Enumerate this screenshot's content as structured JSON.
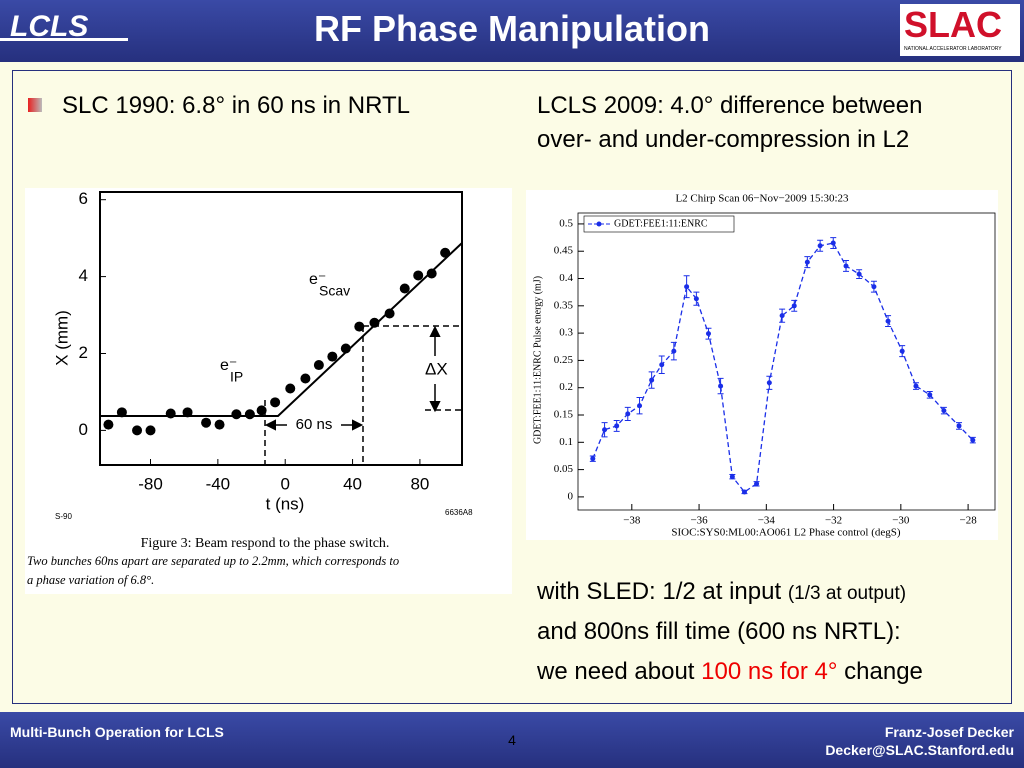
{
  "header": {
    "title": "RF Phase Manipulation",
    "logo_left": "LCLS",
    "logo_right": "SLAC",
    "logo_right_sub": "NATIONAL ACCELERATOR LABORATORY"
  },
  "bullets": {
    "left": "SLC 1990: 6.8° in 60 ns in NRTL",
    "right": [
      "LCLS 2009: 4.0° difference between",
      "over- and under-compression in L2"
    ],
    "sled": [
      "with SLED: 1/2 at input ",
      "(1/3 at output)"
    ],
    "fill": "and 800ns fill time (600 ns NRTL):",
    "need": [
      "we need about ",
      "100 ns for 4°",
      " change"
    ]
  },
  "chart_data": [
    {
      "type": "scatter",
      "xlabel": "t    (ns)",
      "ylabel": "X    (mm)",
      "xlim": [
        -110,
        105
      ],
      "ylim": [
        -0.9,
        6.2
      ],
      "xticks": [
        -80,
        -40,
        0,
        40,
        80
      ],
      "yticks": [
        0,
        2,
        4,
        6
      ],
      "x": [
        -105,
        -97,
        -88,
        -80,
        -68,
        -58,
        -47,
        -39,
        -29,
        -21,
        -14,
        -6,
        3,
        12,
        20,
        28,
        36,
        44,
        53,
        62,
        71,
        79,
        87,
        95
      ],
      "values": [
        0.15,
        0.47,
        0,
        0,
        0.44,
        0.47,
        0.2,
        0.15,
        0.42,
        0.42,
        0.52,
        0.73,
        1.09,
        1.35,
        1.7,
        1.92,
        2.13,
        2.7,
        2.8,
        3.04,
        3.69,
        4.03,
        4.08,
        4.62
      ],
      "annotations": [
        "e⁻",
        "IP",
        "e⁻",
        "Scav",
        "60 ns",
        "ΔX",
        "S-90",
        "6636A8"
      ],
      "caption": "Figure 3: Beam respond to the phase switch.",
      "caption_text": [
        "Two bunches 60ns apart are separated up to 2.2mm, which corresponds to",
        "a phase variation of 6.8°."
      ]
    },
    {
      "type": "line",
      "title": "L2 Chirp Scan 06−Nov−2009 15:30:23",
      "xlabel": "SIOC:SYS0:ML00:AO061 L2 Phase control (degS)",
      "ylabel": "GDET:FEE1:11:ENRC Pulse energy (mJ)",
      "legend": "GDET:FEE1:11:ENRC",
      "color": "#1a2ee8",
      "xlim": [
        -39.6,
        -27.2
      ],
      "ylim": [
        -0.024,
        0.52
      ],
      "xticks": [
        {
          "value": -38,
          "label": "−38"
        },
        {
          "value": -36,
          "label": "−36"
        },
        {
          "value": -34,
          "label": "−34"
        },
        {
          "value": -32,
          "label": "−32"
        },
        {
          "value": -30,
          "label": "−30"
        },
        {
          "value": -28,
          "label": "−28"
        }
      ],
      "yticks": [
        0,
        0.05,
        0.1,
        0.15,
        0.2,
        0.25,
        0.3,
        0.35,
        0.4,
        0.45,
        0.5
      ],
      "x": [
        -39.16,
        -38.81,
        -38.45,
        -38.12,
        -37.77,
        -37.41,
        -37.11,
        -36.75,
        -36.37,
        -36.08,
        -35.72,
        -35.36,
        -35.01,
        -34.65,
        -34.29,
        -33.91,
        -33.53,
        -33.17,
        -32.78,
        -32.4,
        -32.01,
        -31.63,
        -31.24,
        -30.8,
        -30.38,
        -29.96,
        -29.55,
        -29.14,
        -28.72,
        -28.27,
        -27.86
      ],
      "values": [
        0.07,
        0.123,
        0.13,
        0.152,
        0.167,
        0.214,
        0.242,
        0.267,
        0.385,
        0.363,
        0.299,
        0.203,
        0.037,
        0.009,
        0.024,
        0.209,
        0.332,
        0.35,
        0.43,
        0.46,
        0.465,
        0.423,
        0.408,
        0.385,
        0.322,
        0.267,
        0.203,
        0.187,
        0.158,
        0.13,
        0.104
      ],
      "errors": [
        0.005,
        0.013,
        0.01,
        0.012,
        0.015,
        0.015,
        0.016,
        0.016,
        0.02,
        0.012,
        0.01,
        0.014,
        0.004,
        0.003,
        0.004,
        0.012,
        0.012,
        0.01,
        0.01,
        0.01,
        0.01,
        0.01,
        0.008,
        0.01,
        0.01,
        0.01,
        0.006,
        0.006,
        0.006,
        0.006,
        0.005
      ]
    }
  ],
  "footer": {
    "left": "Multi-Bunch Operation for LCLS",
    "page": "4",
    "author": "Franz-Josef Decker",
    "email": "Decker@SLAC.Stanford.edu"
  }
}
